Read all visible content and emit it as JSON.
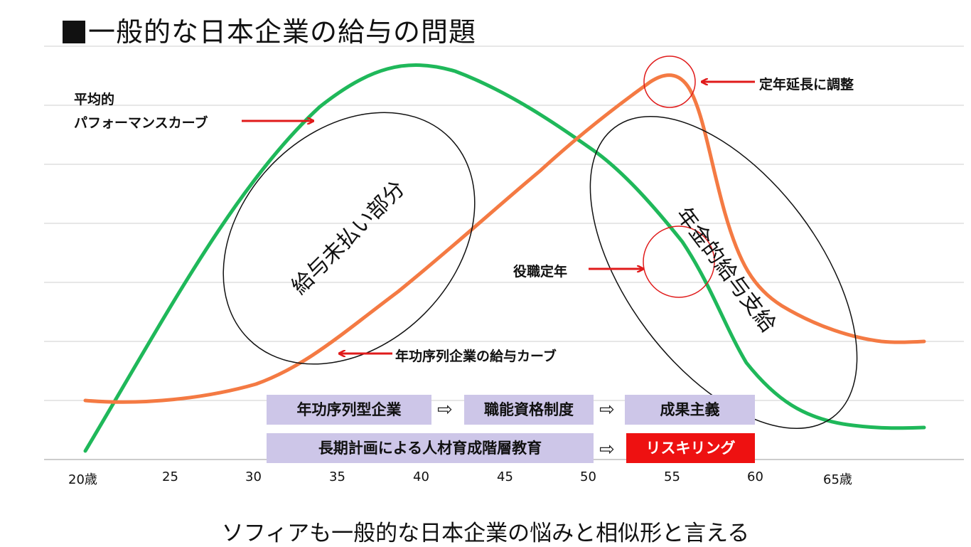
{
  "title": "一般的な日本企業の給与の問題",
  "footer": "ソフィアも一般的な日本企業の悩みと相似形と言える",
  "x_axis_ticks": [
    "20歳",
    "25",
    "30",
    "35",
    "40",
    "45",
    "50",
    "55",
    "60",
    "65歳"
  ],
  "annotations": {
    "performance_curve_line1": "平均的",
    "performance_curve_line2": "パフォーマンスカーブ",
    "seniority_curve": "年功序列企業の給与カーブ",
    "unpaid_salary": "給与未払い部分",
    "pension_payment": "年金的給与支給",
    "retirement_extension": "定年延長に調整",
    "position_retirement": "役職定年"
  },
  "flow_row1": [
    "年功序列型企業",
    "職能資格制度",
    "成果主義"
  ],
  "flow_row2": [
    "長期計画による人材育成階層教育",
    "リスキリング"
  ],
  "colors": {
    "performance_curve": "#1fb85a",
    "salary_curve": "#f47a43",
    "callout": "#e01b1b",
    "box": "#cdc6e8",
    "box_highlight": "#ee1111"
  },
  "icons": {
    "flow_arrow": "right-outline-arrow-icon"
  }
}
